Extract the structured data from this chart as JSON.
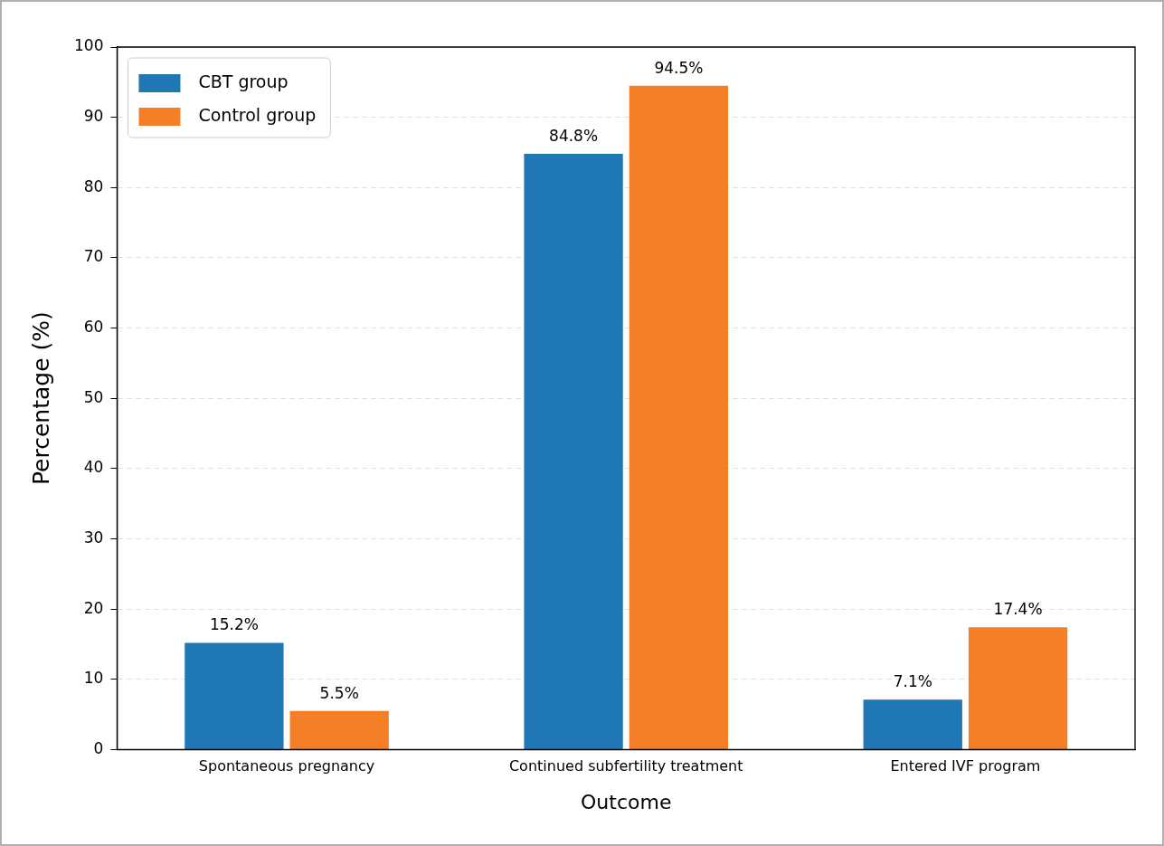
{
  "chart_data": {
    "type": "bar",
    "xlabel": "Outcome",
    "ylabel": "Percentage (%)",
    "categories": [
      "Spontaneous pregnancy",
      "Continued subfertility treatment",
      "Entered IVF program"
    ],
    "series": [
      {
        "name": "CBT group",
        "color": "#1f77b4",
        "values": [
          15.2,
          84.8,
          7.1
        ],
        "value_labels": [
          "15.2%",
          "84.8%",
          "7.1%"
        ]
      },
      {
        "name": "Control group",
        "color": "#f57f26",
        "values": [
          5.5,
          94.5,
          17.4
        ],
        "value_labels": [
          "5.5%",
          "94.5%",
          "17.4%"
        ]
      }
    ],
    "ylim": [
      0,
      100
    ],
    "yticks": [
      0,
      10,
      20,
      30,
      40,
      50,
      60,
      70,
      80,
      90,
      100
    ],
    "grid": "y",
    "legend": "top left"
  }
}
